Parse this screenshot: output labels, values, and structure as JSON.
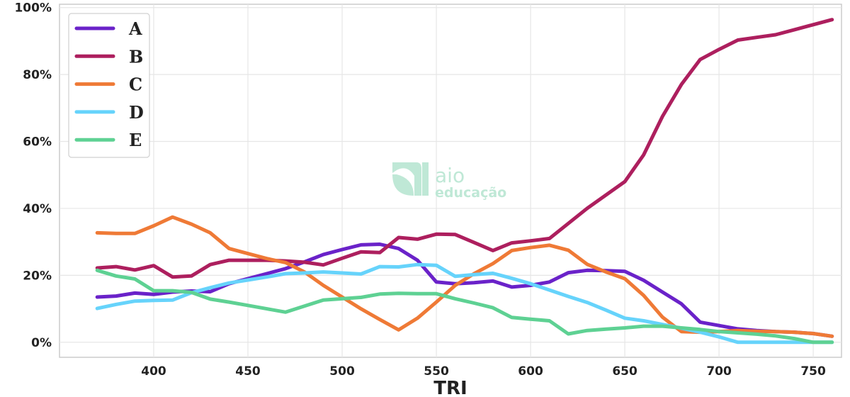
{
  "chart_data": {
    "type": "line",
    "xlabel": "TRI",
    "ylabel": "",
    "xlim": [
      350,
      765
    ],
    "ylim": [
      -4.5,
      101
    ],
    "xticks": [
      400,
      450,
      500,
      550,
      600,
      650,
      700,
      750
    ],
    "yticks": [
      0,
      20,
      40,
      60,
      80,
      100
    ],
    "ytick_suffix": "%",
    "grid": true,
    "legend_position": "top-left",
    "watermark": {
      "line1": "aio",
      "line2": "educação"
    },
    "series": [
      {
        "name": "A",
        "color": "#6a22c9",
        "x": [
          370,
          380,
          390,
          400,
          410,
          420,
          430,
          440,
          450,
          460,
          470,
          480,
          490,
          500,
          510,
          520,
          530,
          540,
          550,
          560,
          570,
          580,
          590,
          600,
          610,
          620,
          630,
          640,
          650,
          660,
          670,
          680,
          690,
          700,
          710,
          720,
          730,
          740,
          750,
          760
        ],
        "y": [
          13.5,
          13.8,
          14.7,
          14.3,
          15.0,
          15.3,
          15.1,
          17.5,
          19.0,
          20.5,
          22.0,
          24.0,
          26.2,
          27.7,
          29.1,
          29.3,
          28.0,
          24.5,
          18.0,
          17.5,
          17.8,
          18.3,
          16.5,
          17.0,
          18.0,
          20.8,
          21.5,
          21.4,
          21.2,
          18.5,
          15.0,
          11.5,
          6.0,
          5.0,
          4.0,
          3.5,
          3.2,
          3.0,
          2.6,
          1.8
        ]
      },
      {
        "name": "B",
        "color": "#ad1f5e",
        "x": [
          370,
          380,
          390,
          400,
          410,
          420,
          430,
          440,
          450,
          460,
          470,
          480,
          490,
          500,
          510,
          520,
          530,
          540,
          550,
          560,
          570,
          580,
          590,
          600,
          610,
          620,
          630,
          640,
          650,
          660,
          670,
          680,
          690,
          700,
          710,
          720,
          730,
          740,
          750,
          760
        ],
        "y": [
          22.2,
          22.6,
          21.6,
          22.9,
          19.5,
          19.8,
          23.2,
          24.5,
          24.5,
          24.5,
          24.3,
          23.9,
          23.1,
          25.1,
          27.0,
          26.8,
          31.3,
          30.8,
          32.3,
          32.2,
          29.8,
          27.4,
          29.7,
          30.3,
          31.0,
          35.5,
          40.0,
          44.0,
          48.0,
          56.0,
          67.5,
          77.0,
          84.5,
          87.5,
          90.3,
          91.1,
          91.9,
          93.4,
          94.9,
          96.4
        ]
      },
      {
        "name": "C",
        "color": "#ef7a36",
        "x": [
          370,
          380,
          390,
          400,
          410,
          420,
          430,
          440,
          450,
          460,
          470,
          480,
          490,
          500,
          510,
          520,
          530,
          540,
          550,
          560,
          570,
          580,
          590,
          600,
          610,
          620,
          630,
          640,
          650,
          660,
          670,
          680,
          690,
          700,
          710,
          720,
          730,
          740,
          750,
          760
        ],
        "y": [
          32.7,
          32.5,
          32.5,
          34.8,
          37.4,
          35.3,
          32.7,
          28.0,
          26.5,
          25.0,
          23.8,
          21.0,
          17.0,
          13.5,
          10.0,
          6.8,
          3.7,
          7.2,
          12.0,
          17.0,
          20.5,
          23.5,
          27.4,
          28.3,
          29.0,
          27.5,
          23.3,
          21.0,
          19.0,
          14.0,
          7.5,
          3.2,
          3.0,
          3.2,
          3.5,
          3.3,
          3.2,
          3.0,
          2.6,
          1.8
        ]
      },
      {
        "name": "D",
        "color": "#66d3fb",
        "x": [
          370,
          380,
          390,
          400,
          410,
          420,
          430,
          440,
          450,
          460,
          470,
          480,
          490,
          500,
          510,
          520,
          530,
          540,
          550,
          560,
          570,
          580,
          590,
          600,
          610,
          620,
          630,
          640,
          650,
          660,
          670,
          680,
          690,
          700,
          710,
          720,
          730,
          740,
          750,
          760
        ],
        "y": [
          10.1,
          11.3,
          12.3,
          12.5,
          12.6,
          14.8,
          16.3,
          17.7,
          18.6,
          19.5,
          20.5,
          20.7,
          21.0,
          20.7,
          20.4,
          22.6,
          22.5,
          23.2,
          23.0,
          19.7,
          20.2,
          20.6,
          19.1,
          17.5,
          15.6,
          13.7,
          11.9,
          9.6,
          7.2,
          6.4,
          5.3,
          4.2,
          3.0,
          1.6,
          0.0,
          0.0,
          0.0,
          0.0,
          0.0,
          0.0
        ]
      },
      {
        "name": "E",
        "color": "#5ed193",
        "x": [
          370,
          380,
          390,
          400,
          410,
          420,
          430,
          440,
          450,
          460,
          470,
          480,
          490,
          500,
          510,
          520,
          530,
          540,
          550,
          560,
          570,
          580,
          590,
          600,
          610,
          620,
          630,
          640,
          650,
          660,
          670,
          680,
          690,
          700,
          710,
          720,
          730,
          740,
          750,
          760
        ],
        "y": [
          21.5,
          19.8,
          18.9,
          15.4,
          15.4,
          14.9,
          12.9,
          12.0,
          11.0,
          10.0,
          9.0,
          10.8,
          12.6,
          13.0,
          13.4,
          14.4,
          14.6,
          14.5,
          14.5,
          13.0,
          11.7,
          10.3,
          7.4,
          6.9,
          6.4,
          2.5,
          3.5,
          3.9,
          4.3,
          4.8,
          4.8,
          4.3,
          3.8,
          3.2,
          2.8,
          2.4,
          1.9,
          1.1,
          0.0,
          0.0
        ]
      }
    ]
  }
}
